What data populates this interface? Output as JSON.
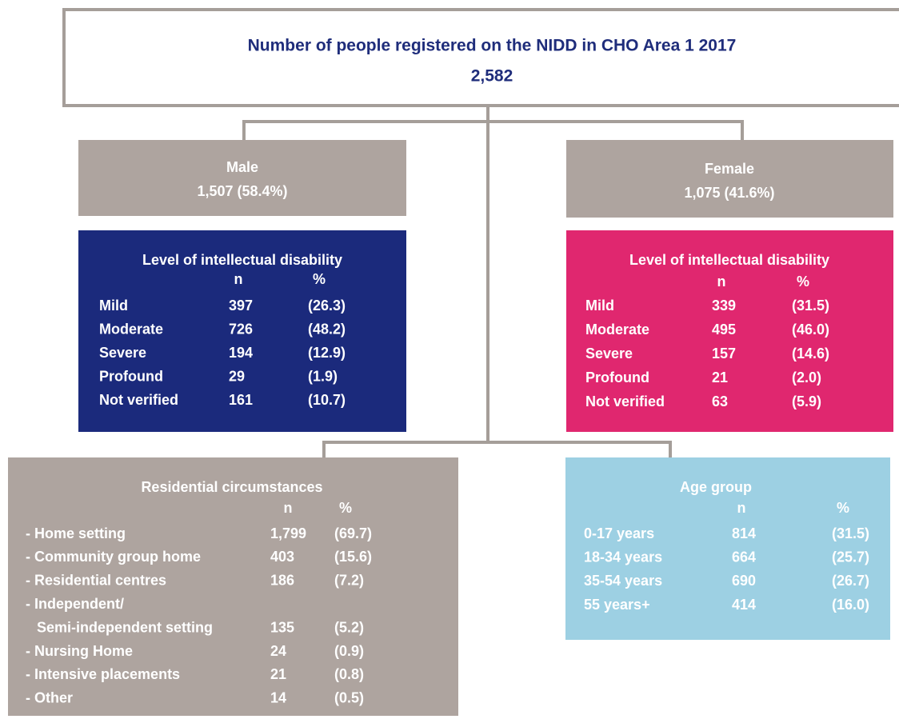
{
  "header": {
    "title": "Number of people registered on the NIDD in CHO Area 1 2017",
    "total": "2,582"
  },
  "male": {
    "label": "Male",
    "count": "1,507 (58.4%)"
  },
  "female": {
    "label": "Female",
    "count": "1,075 (41.6%)"
  },
  "male_level": {
    "title": "Level of intellectual disability",
    "columns": [
      "n",
      "%"
    ],
    "rows": [
      {
        "label": "Mild",
        "n": "397",
        "pct": "(26.3)"
      },
      {
        "label": "Moderate",
        "n": "726",
        "pct": "(48.2)"
      },
      {
        "label": "Severe",
        "n": "194",
        "pct": "(12.9)"
      },
      {
        "label": "Profound",
        "n": "29",
        "pct": "(1.9)"
      },
      {
        "label": "Not verified",
        "n": "161",
        "pct": "(10.7)"
      }
    ]
  },
  "female_level": {
    "title": "Level of intellectual disability",
    "columns": [
      "n",
      "%"
    ],
    "rows": [
      {
        "label": "Mild",
        "n": "339",
        "pct": "(31.5)"
      },
      {
        "label": "Moderate",
        "n": "495",
        "pct": "(46.0)"
      },
      {
        "label": "Severe",
        "n": "157",
        "pct": "(14.6)"
      },
      {
        "label": "Profound",
        "n": "21",
        "pct": "(2.0)"
      },
      {
        "label": "Not verified",
        "n": "63",
        "pct": "(5.9)"
      }
    ]
  },
  "residential": {
    "title": "Residential circumstances",
    "columns": [
      "n",
      "%"
    ],
    "rows": [
      {
        "label": "- Home setting",
        "n": "1,799",
        "pct": "(69.7)"
      },
      {
        "label": "- Community group home",
        "n": "403",
        "pct": "(15.6)"
      },
      {
        "label": "- Residential centres",
        "n": "186",
        "pct": "(7.2)"
      },
      {
        "label": "- Independent/",
        "label2": "Semi-independent setting",
        "n": "135",
        "pct": "(5.2)"
      },
      {
        "label": "- Nursing Home",
        "n": "24",
        "pct": "(0.9)"
      },
      {
        "label": "- Intensive placements",
        "n": "21",
        "pct": "(0.8)"
      },
      {
        "label": "- Other",
        "n": "14",
        "pct": "(0.5)"
      }
    ]
  },
  "age": {
    "title": "Age group",
    "columns": [
      "n",
      "%"
    ],
    "rows": [
      {
        "label": "0-17 years",
        "n": "814",
        "pct": "(31.5)"
      },
      {
        "label": "18-34 years",
        "n": "664",
        "pct": "(25.7)"
      },
      {
        "label": "35-54 years",
        "n": "690",
        "pct": "(26.7)"
      },
      {
        "label": "55 years+",
        "n": "414",
        "pct": "(16.0)"
      }
    ]
  }
}
